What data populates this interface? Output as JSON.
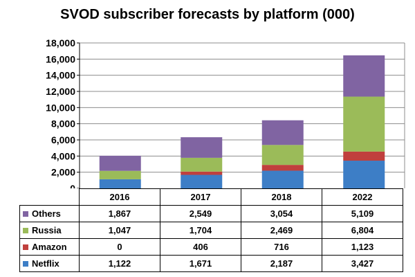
{
  "chart_data": {
    "type": "bar",
    "stacked": true,
    "title": "SVOD subscriber forecasts by platform (000)",
    "categories": [
      "2016",
      "2017",
      "2018",
      "2022"
    ],
    "ylim": [
      0,
      18000
    ],
    "yticks": [
      0,
      2000,
      4000,
      6000,
      8000,
      10000,
      12000,
      14000,
      16000,
      18000
    ],
    "ytick_labels": [
      "0",
      "2,000",
      "4,000",
      "6,000",
      "8,000",
      "10,000",
      "12,000",
      "14,000",
      "16,000",
      "18,000"
    ],
    "grid": true,
    "legend_placement": "table-left",
    "series": [
      {
        "name": "Netflix",
        "color": "#3d7ec6",
        "values": [
          1122,
          1671,
          2187,
          3427
        ],
        "labels": [
          "1,122",
          "1,671",
          "2,187",
          "3,427"
        ]
      },
      {
        "name": "Amazon",
        "color": "#c0403d",
        "values": [
          0,
          406,
          716,
          1123
        ],
        "labels": [
          "0",
          "406",
          "716",
          "1,123"
        ]
      },
      {
        "name": "Russia",
        "color": "#9bbb59",
        "values": [
          1047,
          1704,
          2469,
          6804
        ],
        "labels": [
          "1,047",
          "1,704",
          "2,469",
          "6,804"
        ]
      },
      {
        "name": "Others",
        "color": "#8064a2",
        "values": [
          1867,
          2549,
          3054,
          5109
        ],
        "labels": [
          "1,867",
          "2,549",
          "3,054",
          "5,109"
        ]
      }
    ]
  }
}
